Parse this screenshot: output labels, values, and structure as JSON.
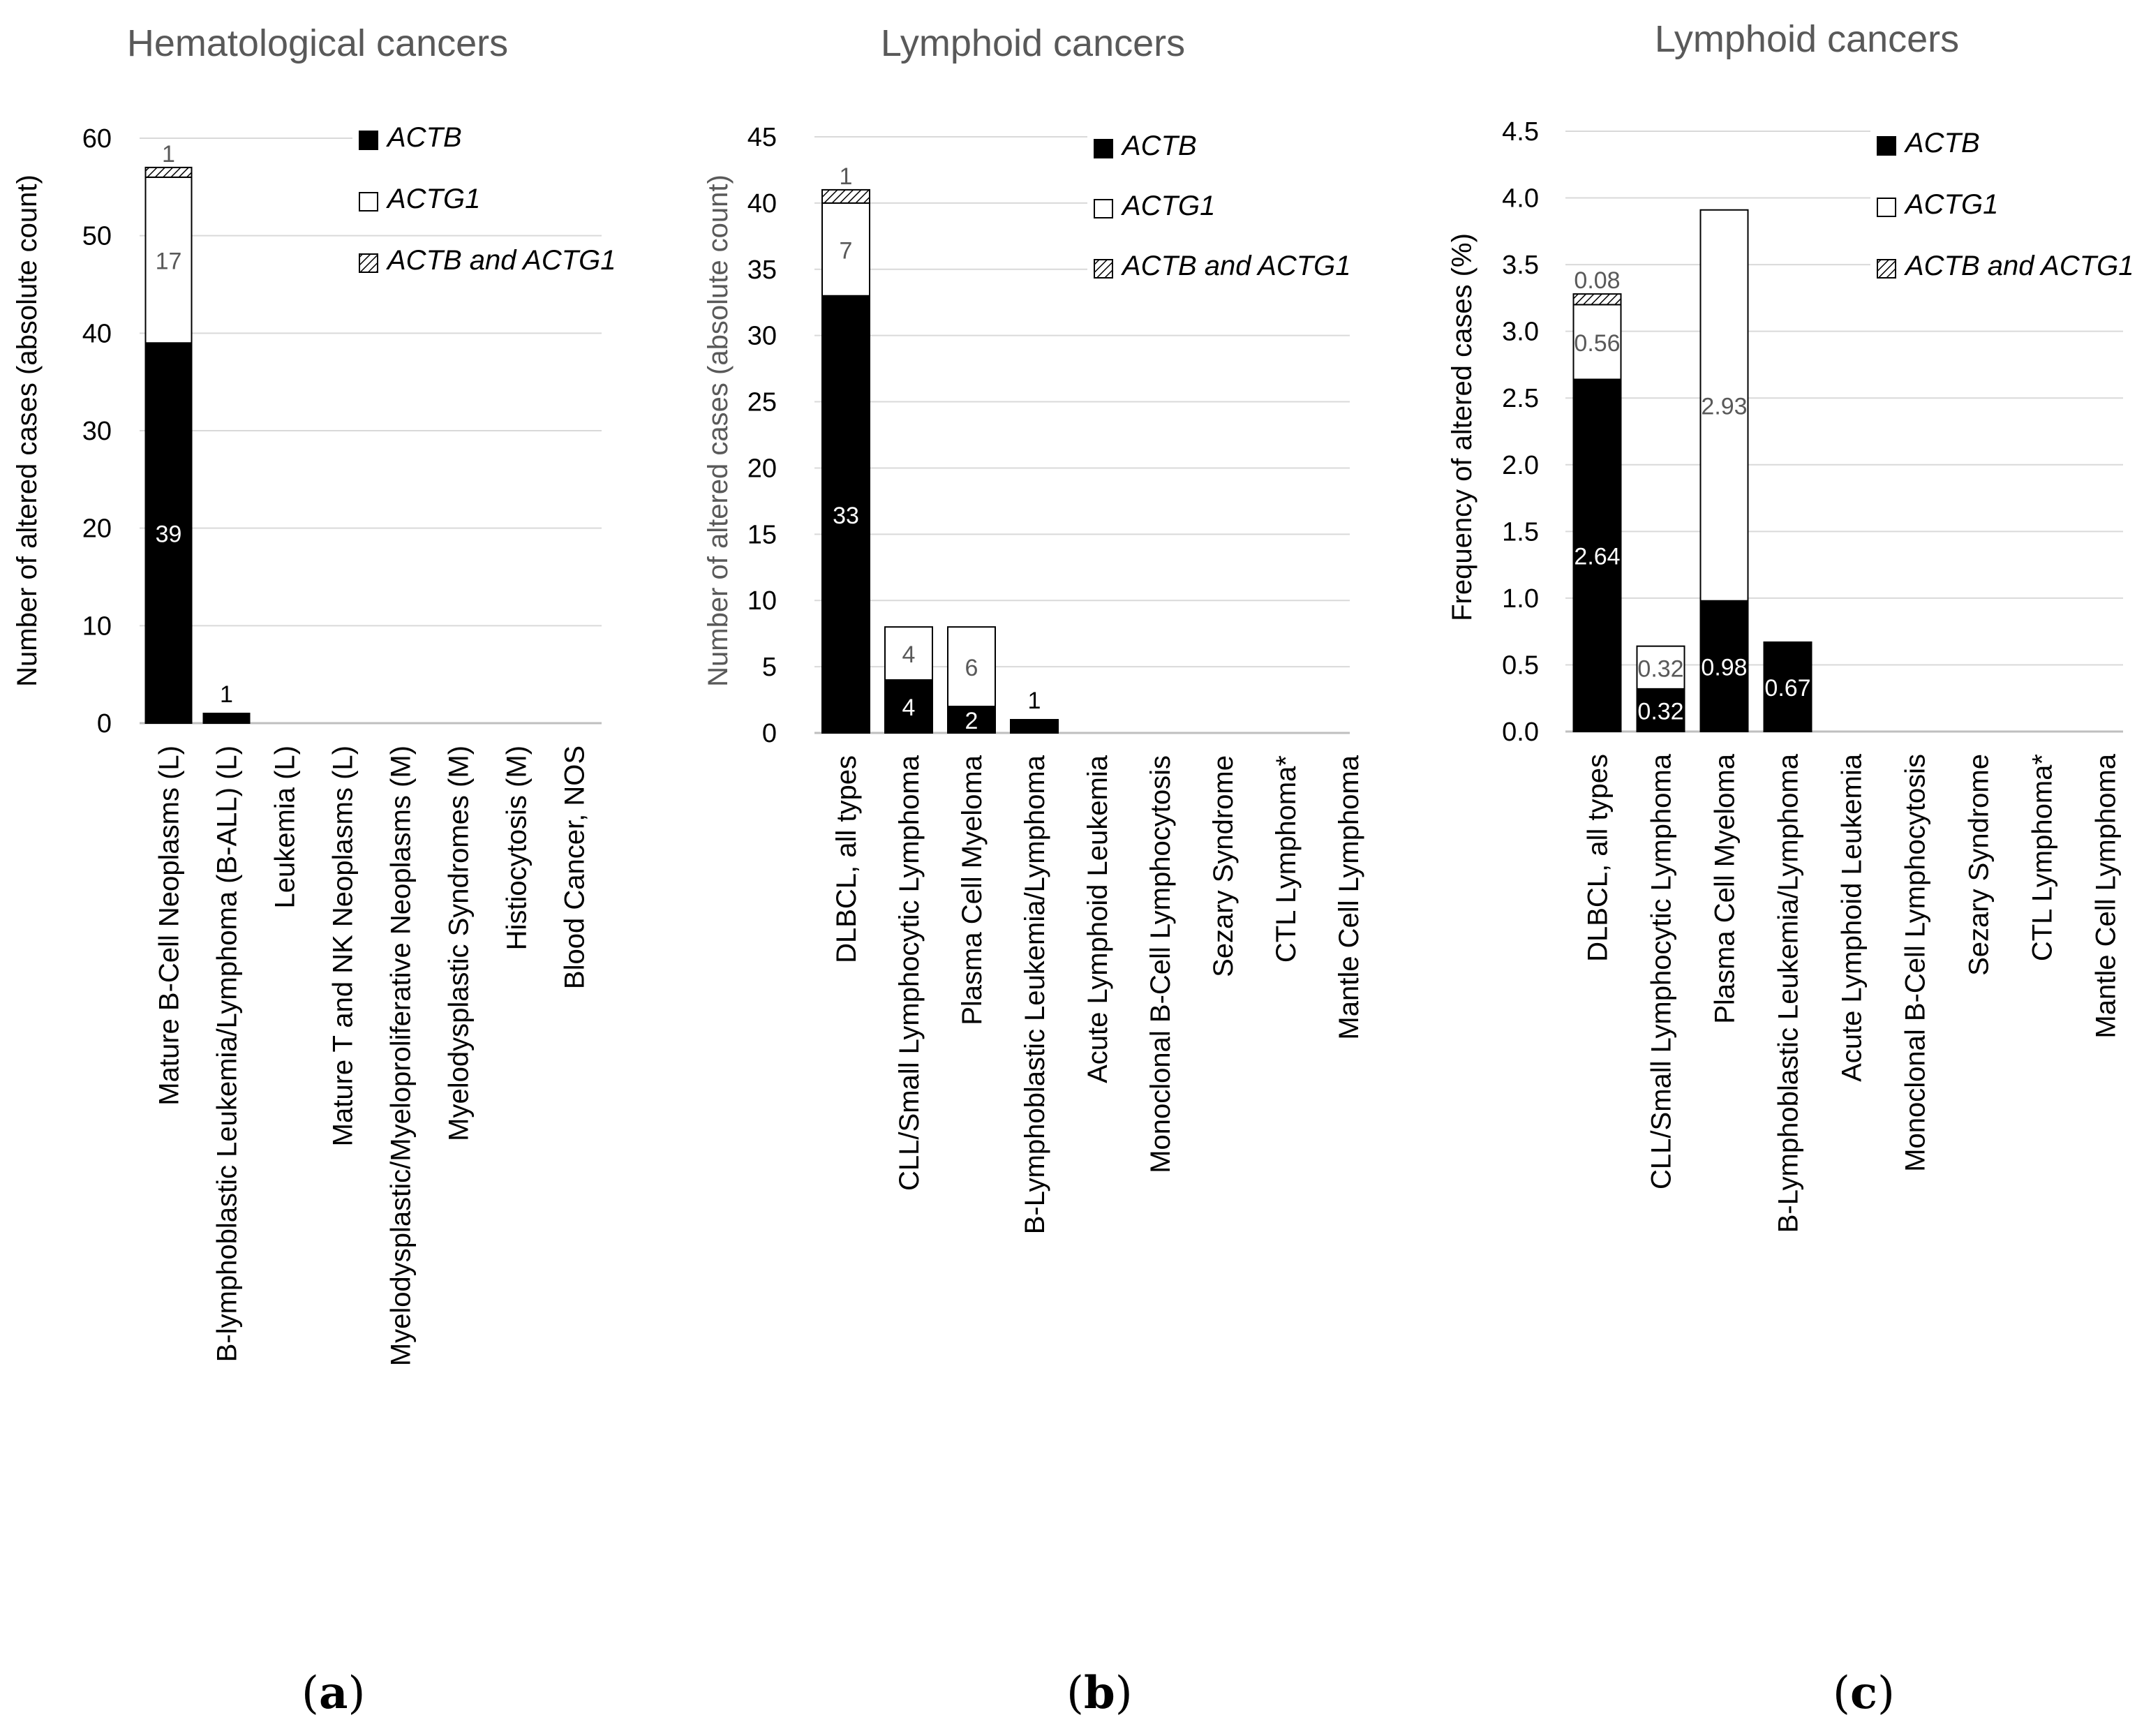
{
  "colors": {
    "actb": "#000000",
    "actg1": "#ffffff",
    "both_hatch": "#000000",
    "grid": "#d9d9d9",
    "axis_text": "#595959",
    "title_text": "#595959"
  },
  "legend": [
    {
      "key": "actb",
      "label": "ACTB"
    },
    {
      "key": "actg1",
      "label": "ACTG1"
    },
    {
      "key": "both",
      "label": "ACTB and ACTG1"
    }
  ],
  "panels": [
    {
      "open": "(",
      "letter": "a",
      "close": ")"
    },
    {
      "open": "(",
      "letter": "b",
      "close": ")"
    },
    {
      "open": "(",
      "letter": "c",
      "close": ")"
    }
  ],
  "chart_data": [
    {
      "type": "bar",
      "stacked": true,
      "title": "Hematological cancers",
      "ylabel": "Number of altered cases  (absolute count)",
      "xlabel": "",
      "ylim": [
        0,
        60
      ],
      "yticks": [
        "0",
        "10",
        "20",
        "30",
        "40",
        "50",
        "60"
      ],
      "ytick_values": [
        0,
        10,
        20,
        30,
        40,
        50,
        60
      ],
      "categories": [
        "Mature B-Cell Neoplasms (L)",
        "B-lymphoblastic Leukemia/Lymphoma (B-ALL) (L)",
        "Leukemia (L)",
        "Mature T and NK Neoplasms (L)",
        "Myelodysplastic/Myeloproliferative Neoplasms (M)",
        "Myelodysplastic Syndromes (M)",
        "Histiocytosis (M)",
        "Blood Cancer, NOS"
      ],
      "series": [
        {
          "name": "ACTB",
          "values": [
            39,
            1,
            0,
            0,
            0,
            0,
            0,
            0
          ],
          "labels": [
            "39",
            "",
            "",
            "",
            "",
            "",
            "",
            ""
          ]
        },
        {
          "name": "ACTG1",
          "values": [
            17,
            0,
            0,
            0,
            0,
            0,
            0,
            0
          ],
          "labels": [
            "17",
            "",
            "",
            "",
            "",
            "",
            "",
            ""
          ]
        },
        {
          "name": "ACTB and ACTG1",
          "values": [
            1,
            0,
            0,
            0,
            0,
            0,
            0,
            0
          ],
          "labels": [
            "1",
            "",
            "",
            "",
            "",
            "",
            "",
            ""
          ]
        }
      ],
      "top_labels": [
        "",
        "1",
        "",
        "",
        "",
        "",
        "",
        ""
      ]
    },
    {
      "type": "bar",
      "stacked": true,
      "title": "Lymphoid cancers",
      "ylabel": "Number of altered cases (absolute count)",
      "xlabel": "",
      "ylim": [
        0,
        45
      ],
      "yticks": [
        "0",
        "5",
        "10",
        "15",
        "20",
        "25",
        "30",
        "35",
        "40",
        "45"
      ],
      "ytick_values": [
        0,
        5,
        10,
        15,
        20,
        25,
        30,
        35,
        40,
        45
      ],
      "categories": [
        "DLBCL, all types",
        "CLL/Small Lymphocytic Lymphoma",
        "Plasma Cell Myeloma",
        "B-Lymphoblastic Leukemia/Lymphoma",
        "Acute Lymphoid Leukemia",
        "Monoclonal B-Cell Lymphocytosis",
        "Sezary Syndrome",
        "CTL Lymphoma*",
        "Mantle Cell Lymphoma"
      ],
      "series": [
        {
          "name": "ACTB",
          "values": [
            33,
            4,
            2,
            1,
            0,
            0,
            0,
            0,
            0
          ],
          "labels": [
            "33",
            "4",
            "2",
            "",
            "",
            "",
            "",
            "",
            ""
          ]
        },
        {
          "name": "ACTG1",
          "values": [
            7,
            4,
            6,
            0,
            0,
            0,
            0,
            0,
            0
          ],
          "labels": [
            "7",
            "4",
            "6",
            "",
            "",
            "",
            "",
            "",
            ""
          ]
        },
        {
          "name": "ACTB and ACTG1",
          "values": [
            1,
            0,
            0,
            0,
            0,
            0,
            0,
            0,
            0
          ],
          "labels": [
            "1",
            "",
            "",
            "",
            "",
            "",
            "",
            "",
            ""
          ]
        }
      ],
      "top_labels": [
        "",
        "",
        "",
        "1",
        "",
        "",
        "",
        "",
        ""
      ]
    },
    {
      "type": "bar",
      "stacked": true,
      "title": "Lymphoid cancers",
      "ylabel": "Frequency of altered cases (%)",
      "xlabel": "",
      "ylim": [
        0,
        4.5
      ],
      "yticks": [
        "0.0",
        "0.5",
        "1.0",
        "1.5",
        "2.0",
        "2.5",
        "3.0",
        "3.5",
        "4.0",
        "4.5"
      ],
      "ytick_values": [
        0,
        0.5,
        1.0,
        1.5,
        2.0,
        2.5,
        3.0,
        3.5,
        4.0,
        4.5
      ],
      "categories": [
        "DLBCL, all types",
        "CLL/Small Lymphocytic Lymphoma",
        "Plasma Cell Myeloma",
        "B-Lymphoblastic Leukemia/Lymphoma",
        "Acute Lymphoid Leukemia",
        "Monoclonal B-Cell Lymphocytosis",
        "Sezary Syndrome",
        "CTL Lymphoma*",
        "Mantle Cell Lymphoma"
      ],
      "series": [
        {
          "name": "ACTB",
          "values": [
            2.64,
            0.32,
            0.98,
            0.67,
            0,
            0,
            0,
            0,
            0
          ],
          "labels": [
            "2.64",
            "0.32",
            "0.98",
            "0.67",
            "",
            "",
            "",
            "",
            ""
          ]
        },
        {
          "name": "ACTG1",
          "values": [
            0.56,
            0.32,
            2.93,
            0,
            0,
            0,
            0,
            0,
            0
          ],
          "labels": [
            "0.56",
            "0.32",
            "2.93",
            "",
            "",
            "",
            "",
            "",
            ""
          ]
        },
        {
          "name": "ACTB and ACTG1",
          "values": [
            0.08,
            0,
            0,
            0,
            0,
            0,
            0,
            0,
            0
          ],
          "labels": [
            "0.08",
            "",
            "",
            "",
            "",
            "",
            "",
            "",
            ""
          ]
        }
      ],
      "top_labels": [
        "",
        "",
        "",
        "",
        "",
        "",
        "",
        "",
        ""
      ]
    }
  ]
}
